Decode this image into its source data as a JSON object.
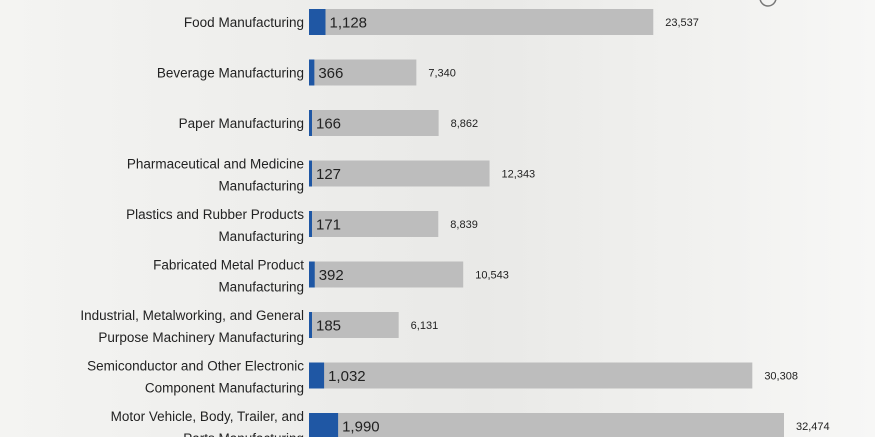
{
  "chart_data": {
    "type": "bar",
    "orientation": "horizontal",
    "categories": [
      [
        "Food Manufacturing"
      ],
      [
        "Beverage Manufacturing"
      ],
      [
        "Paper Manufacturing"
      ],
      [
        "Pharmaceutical and Medicine",
        "Manufacturing"
      ],
      [
        "Plastics and Rubber Products",
        "Manufacturing"
      ],
      [
        "Fabricated Metal Product",
        "Manufacturing"
      ],
      [
        "Industrial, Metalworking, and General",
        "Purpose Machinery Manufacturing"
      ],
      [
        "Semiconductor and Other Electronic",
        "Component Manufacturing"
      ],
      [
        "Motor Vehicle, Body, Trailer, and",
        "Parts Manufacturing"
      ]
    ],
    "series": [
      {
        "values": [
          23537,
          7340,
          8862,
          12343,
          8839,
          10543,
          6131,
          30308,
          32474
        ],
        "color": "#bdbdbd"
      },
      {
        "values": [
          1128,
          366,
          166,
          127,
          171,
          392,
          185,
          1032,
          1990
        ],
        "color": "#1f57a4"
      }
    ],
    "value_labels_total": [
      "23,537",
      "7,340",
      "8,862",
      "12,343",
      "8,839",
      "10,543",
      "6,131",
      "30,308",
      "32,474"
    ],
    "value_labels_inner": [
      "1,128",
      "366",
      "166",
      "127",
      "171",
      "392",
      "185",
      "1,032",
      "1,990"
    ],
    "xlim": [
      0,
      38000
    ],
    "grid": false,
    "title": "",
    "xlabel": "",
    "ylabel": ""
  }
}
